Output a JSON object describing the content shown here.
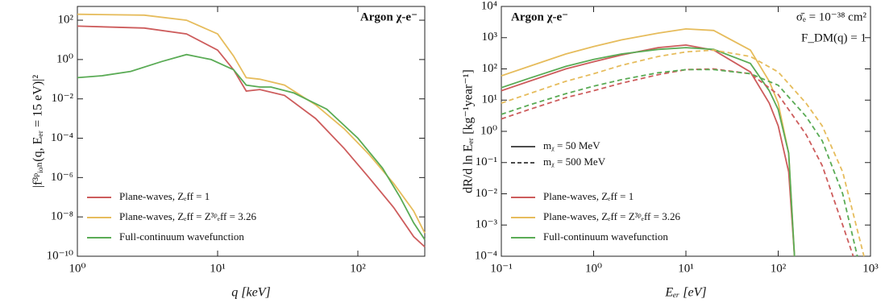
{
  "chart_data": [
    {
      "type": "line",
      "log_x": true,
      "log_y": true,
      "xlabel": "q [keV]",
      "ylabel": "|f³ᵖᵢₒₙ(q, Eₑᵣ = 15 eV)|²",
      "annotations": [
        "Argon χ-e⁻"
      ],
      "xlim": [
        1,
        300
      ],
      "ylim": [
        1e-10,
        500
      ],
      "xticks": [
        {
          "value": 1,
          "label": "10⁰"
        },
        {
          "value": 10,
          "label": "10¹"
        },
        {
          "value": 100,
          "label": "10²"
        }
      ],
      "yticks": [
        {
          "value": 1e-10,
          "label": "10⁻¹⁰"
        },
        {
          "value": 1e-08,
          "label": "10⁻⁸"
        },
        {
          "value": 1e-06,
          "label": "10⁻⁶"
        },
        {
          "value": 0.0001,
          "label": "10⁻⁴"
        },
        {
          "value": 0.01,
          "label": "10⁻²"
        },
        {
          "value": 1,
          "label": "10⁰"
        },
        {
          "value": 100,
          "label": "10²"
        }
      ],
      "legend_position": "lower left",
      "series": [
        {
          "name": "Plane-waves, Zₑff = 1",
          "color": "#cd5c5c",
          "x": [
            1,
            3,
            6,
            10,
            13,
            16,
            20,
            30,
            50,
            80,
            120,
            180,
            250,
            300
          ],
          "values": [
            50,
            40,
            20,
            3,
            0.3,
            0.025,
            0.03,
            0.015,
            0.001,
            3e-05,
            1e-06,
            3e-08,
            1e-09,
            3e-10
          ]
        },
        {
          "name": "Plane-waves, Zₑff = Z³ᵖₑff = 3.26",
          "color": "#e6bc5c",
          "x": [
            1,
            3,
            6,
            10,
            13,
            16,
            20,
            30,
            50,
            80,
            120,
            180,
            250,
            300
          ],
          "values": [
            200,
            180,
            100,
            20,
            1.5,
            0.12,
            0.1,
            0.05,
            0.005,
            0.0003,
            1.5e-05,
            5e-07,
            2e-08,
            1.5e-09
          ]
        },
        {
          "name": "Full-continuum wavefunction",
          "color": "#5aab55",
          "x": [
            1,
            1.5,
            2.4,
            4,
            6,
            9,
            13,
            16,
            20,
            24,
            35,
            60,
            100,
            150,
            200,
            250,
            300
          ],
          "values": [
            0.12,
            0.15,
            0.25,
            0.8,
            1.8,
            1.0,
            0.3,
            0.05,
            0.04,
            0.04,
            0.02,
            0.003,
            0.0001,
            3e-06,
            1e-07,
            5e-09,
            7e-10
          ]
        }
      ]
    },
    {
      "type": "line",
      "log_x": true,
      "log_y": true,
      "xlabel": "Eₑᵣ [eV]",
      "ylabel": "dR/d ln Eₑᵣ [kg⁻¹year⁻¹]",
      "annotations": [
        "Argon χ-e⁻",
        "σ̄ₑ = 10⁻³⁸ cm²",
        "F_DM(q) = 1"
      ],
      "xlim": [
        0.1,
        1000
      ],
      "ylim": [
        0.0001,
        10000
      ],
      "xticks": [
        {
          "value": 0.1,
          "label": "10⁻¹"
        },
        {
          "value": 1,
          "label": "10⁰"
        },
        {
          "value": 10,
          "label": "10¹"
        },
        {
          "value": 100,
          "label": "10²"
        },
        {
          "value": 1000,
          "label": "10³"
        }
      ],
      "yticks": [
        {
          "value": 0.0001,
          "label": "10⁻⁴"
        },
        {
          "value": 0.001,
          "label": "10⁻³"
        },
        {
          "value": 0.01,
          "label": "10⁻²"
        },
        {
          "value": 0.1,
          "label": "10⁻¹"
        },
        {
          "value": 1,
          "label": "10⁰"
        },
        {
          "value": 10,
          "label": "10¹"
        },
        {
          "value": 100,
          "label": "10²"
        },
        {
          "value": 1000,
          "label": "10³"
        },
        {
          "value": 10000,
          "label": "10⁴"
        }
      ],
      "legend_position": "lower left",
      "style_legend": [
        {
          "label": "mᵪ = 50 MeV",
          "dashed": false
        },
        {
          "label": "mᵪ = 500 MeV",
          "dashed": true
        }
      ],
      "legend": [
        {
          "name": "Plane-waves, Zₑff = 1",
          "color": "#cd5c5c"
        },
        {
          "name": "Plane-waves, Zₑff = Z³ᵖₑff = 3.26",
          "color": "#e6bc5c"
        },
        {
          "name": "Full-continuum wavefunction",
          "color": "#5aab55"
        }
      ],
      "series": [
        {
          "legend": 0,
          "style": 0,
          "x": [
            0.1,
            0.2,
            0.5,
            1,
            2,
            5,
            10,
            20,
            50,
            80,
            100,
            130,
            150
          ],
          "values": [
            20,
            40,
            100,
            170,
            280,
            480,
            580,
            400,
            80,
            8,
            1.5,
            0.05,
            0.0001
          ]
        },
        {
          "legend": 1,
          "style": 0,
          "x": [
            0.1,
            0.2,
            0.5,
            1,
            2,
            5,
            10,
            20,
            50,
            80,
            100,
            130,
            150
          ],
          "values": [
            60,
            120,
            300,
            520,
            850,
            1400,
            1900,
            1700,
            400,
            40,
            8,
            0.2,
            0.0001
          ]
        },
        {
          "legend": 2,
          "style": 0,
          "x": [
            0.1,
            0.2,
            0.5,
            1,
            2,
            5,
            10,
            20,
            50,
            80,
            100,
            130,
            150
          ],
          "values": [
            25,
            50,
            120,
            200,
            300,
            420,
            480,
            420,
            150,
            20,
            5,
            0.2,
            0.0001
          ]
        },
        {
          "legend": 0,
          "style": 1,
          "x": [
            0.1,
            0.2,
            0.5,
            1,
            2,
            5,
            10,
            20,
            50,
            100,
            200,
            300,
            500,
            650
          ],
          "values": [
            2.5,
            5,
            12,
            20,
            35,
            65,
            95,
            100,
            70,
            15,
            0.8,
            0.08,
            0.001,
            0.0001
          ]
        },
        {
          "legend": 1,
          "style": 1,
          "x": [
            0.1,
            0.2,
            0.5,
            1,
            2,
            5,
            10,
            20,
            50,
            100,
            200,
            300,
            500,
            850
          ],
          "values": [
            8,
            16,
            40,
            70,
            130,
            250,
            350,
            400,
            250,
            80,
            8,
            1.5,
            0.05,
            0.0001
          ]
        },
        {
          "legend": 2,
          "style": 1,
          "x": [
            0.1,
            0.2,
            0.5,
            1,
            2,
            5,
            10,
            20,
            50,
            100,
            200,
            300,
            500,
            720
          ],
          "values": [
            3.5,
            7,
            16,
            28,
            45,
            75,
            95,
            95,
            70,
            30,
            3,
            0.5,
            0.01,
            0.0001
          ]
        }
      ]
    }
  ]
}
